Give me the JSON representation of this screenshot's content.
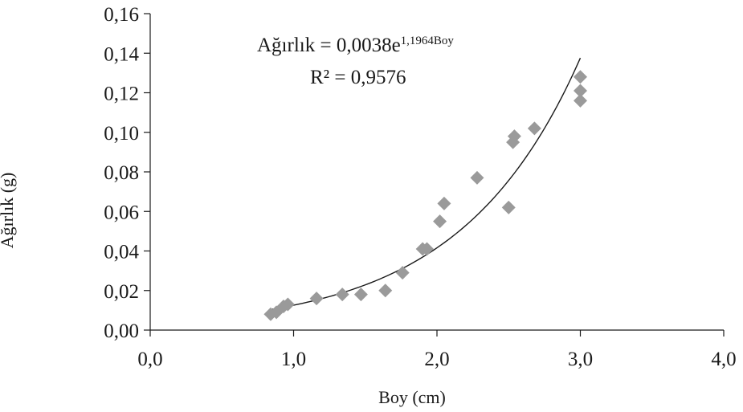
{
  "chart_data": {
    "type": "scatter",
    "title": "",
    "xlabel": "Boy (cm)",
    "ylabel": "Ağırlık (g)",
    "xlim": [
      0,
      4
    ],
    "ylim": [
      0,
      0.16
    ],
    "x_ticks": [
      "0,0",
      "1,0",
      "2,0",
      "3,0",
      "4,0"
    ],
    "y_ticks": [
      "0,00",
      "0,02",
      "0,04",
      "0,06",
      "0,08",
      "0,10",
      "0,12",
      "0,14",
      "0,16"
    ],
    "grid": false,
    "legend": "none",
    "marker": "diamond",
    "marker_color": "#9a9a9a",
    "trendline_color": "#1a1a1a",
    "points": [
      {
        "x": 0.84,
        "y": 0.008
      },
      {
        "x": 0.88,
        "y": 0.009
      },
      {
        "x": 0.93,
        "y": 0.012
      },
      {
        "x": 0.96,
        "y": 0.013
      },
      {
        "x": 1.16,
        "y": 0.016
      },
      {
        "x": 1.34,
        "y": 0.018
      },
      {
        "x": 1.47,
        "y": 0.018
      },
      {
        "x": 1.64,
        "y": 0.02
      },
      {
        "x": 1.76,
        "y": 0.029
      },
      {
        "x": 1.9,
        "y": 0.041
      },
      {
        "x": 1.93,
        "y": 0.041
      },
      {
        "x": 2.02,
        "y": 0.055
      },
      {
        "x": 2.05,
        "y": 0.064
      },
      {
        "x": 2.28,
        "y": 0.077
      },
      {
        "x": 2.5,
        "y": 0.062
      },
      {
        "x": 2.53,
        "y": 0.095
      },
      {
        "x": 2.54,
        "y": 0.098
      },
      {
        "x": 2.68,
        "y": 0.102
      },
      {
        "x": 3.0,
        "y": 0.128
      },
      {
        "x": 3.0,
        "y": 0.121
      },
      {
        "x": 3.0,
        "y": 0.116
      }
    ],
    "trendline": {
      "type": "exponential",
      "a": 0.0038,
      "b": 1.1964,
      "x_range": [
        0.84,
        3.0
      ]
    },
    "equation": {
      "prefix": "Ağırlık = 0,0038e",
      "exponent": "1,1964Boy",
      "r_squared": "R² = 0,9576"
    }
  }
}
